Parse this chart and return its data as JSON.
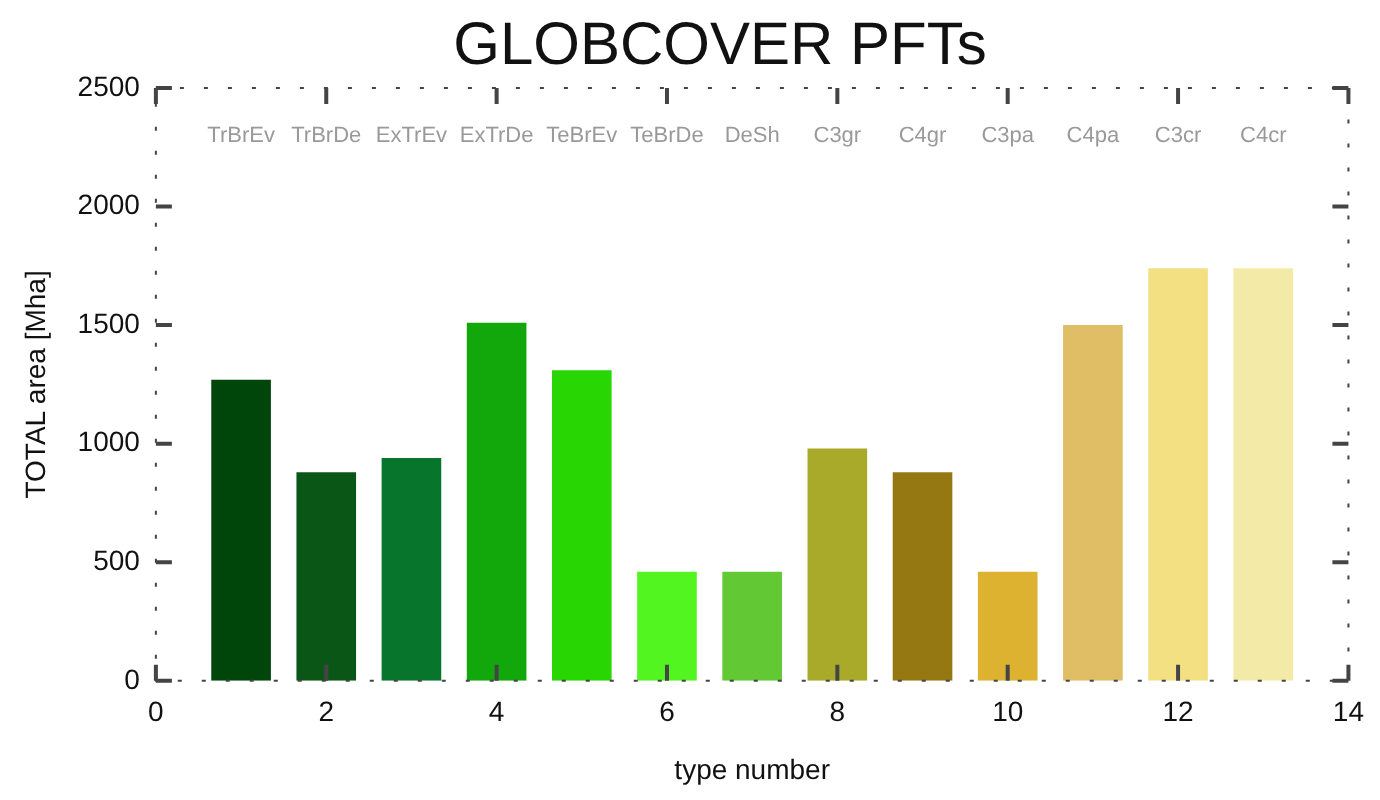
{
  "chart_data": {
    "type": "bar",
    "title": "GLOBCOVER PFTs",
    "xlabel": "type number",
    "ylabel": "TOTAL area [Mha]",
    "x": [
      1,
      2,
      3,
      4,
      5,
      6,
      7,
      8,
      9,
      10,
      11,
      12,
      13
    ],
    "values": [
      1270,
      880,
      940,
      1510,
      1310,
      460,
      460,
      980,
      880,
      460,
      1500,
      1740,
      1740
    ],
    "colors": [
      "#00450a",
      "#0a5617",
      "#08752c",
      "#12a80c",
      "#27d603",
      "#53f520",
      "#62c934",
      "#aaaa2a",
      "#967812",
      "#dcb230",
      "#e0be66",
      "#f3e083",
      "#f4eaa8"
    ],
    "xlim": [
      0,
      14
    ],
    "xticks": [
      0,
      2,
      4,
      6,
      8,
      10,
      12,
      14
    ],
    "ylim": [
      0,
      2500
    ],
    "yticks": [
      0,
      500,
      1000,
      1500,
      2000,
      2500
    ],
    "annotations": [
      "TrBrEv",
      "TrBrDe",
      "ExTrEv",
      "ExTrDe",
      "TeBrEv",
      "TeBrDe",
      "DeSh",
      "C3gr",
      "C4gr",
      "C3pa",
      "C4pa",
      "C3cr",
      "C4cr"
    ],
    "grid": false,
    "legend": false
  }
}
